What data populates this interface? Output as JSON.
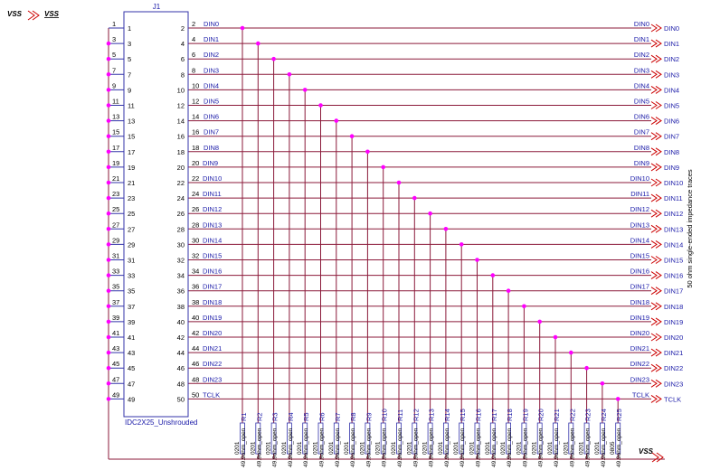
{
  "connector": {
    "refdes": "J1",
    "part": "IDC2X25_Unshrouded",
    "odd_pins": [
      "1",
      "3",
      "5",
      "7",
      "9",
      "11",
      "13",
      "15",
      "17",
      "19",
      "21",
      "23",
      "25",
      "27",
      "29",
      "31",
      "33",
      "35",
      "37",
      "39",
      "41",
      "43",
      "45",
      "47",
      "49"
    ],
    "even_pins": [
      "2",
      "4",
      "6",
      "8",
      "10",
      "12",
      "14",
      "16",
      "18",
      "20",
      "22",
      "24",
      "26",
      "28",
      "30",
      "32",
      "34",
      "36",
      "38",
      "40",
      "42",
      "44",
      "46",
      "48",
      "50"
    ]
  },
  "nets": [
    "DIN0",
    "DIN1",
    "DIN2",
    "DIN3",
    "DIN4",
    "DIN5",
    "DIN6",
    "DIN7",
    "DIN8",
    "DIN9",
    "DIN10",
    "DIN11",
    "DIN12",
    "DIN13",
    "DIN14",
    "DIN15",
    "DIN16",
    "DIN17",
    "DIN18",
    "DIN19",
    "DIN20",
    "DIN21",
    "DIN22",
    "DIN23",
    "TCLK"
  ],
  "resistors": {
    "refs": [
      "R1",
      "R2",
      "R3",
      "R4",
      "R5",
      "R6",
      "R7",
      "R8",
      "R9",
      "R10",
      "R11",
      "R12",
      "R13",
      "R14",
      "R15",
      "R16",
      "R17",
      "R18",
      "R19",
      "R20",
      "R21",
      "R22",
      "R23",
      "R24",
      "R25"
    ],
    "package": "0201",
    "package_last": "0805",
    "value": "49.9ohm_open"
  },
  "power": {
    "label": "VSS"
  },
  "note": "50 ohm single-ended impedance traces",
  "colors": {
    "wire": "#8b1a3a",
    "junction": "#ff00ff",
    "text": "#1a1aa8",
    "body": "#3333aa"
  }
}
